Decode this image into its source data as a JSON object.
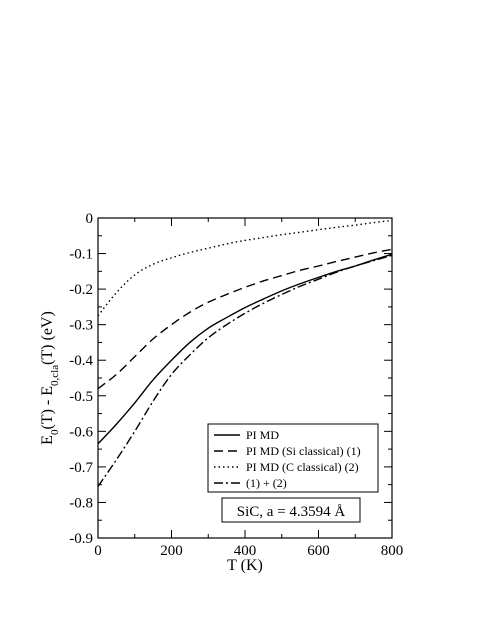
{
  "chart_data": {
    "type": "line",
    "xlabel": "T (K)",
    "ylabel": {
      "parts": [
        {
          "text": "E",
          "sub": false
        },
        {
          "text": "0",
          "sub": true
        },
        {
          "text": "(T) - E",
          "sub": false
        },
        {
          "text": "0,cla",
          "sub": true
        },
        {
          "text": "(T)  (eV)",
          "sub": false
        }
      ]
    },
    "xlim": [
      0,
      800
    ],
    "ylim": [
      -0.9,
      0
    ],
    "xticks": [
      0,
      200,
      400,
      600,
      800
    ],
    "yticks": [
      0,
      -0.1,
      -0.2,
      -0.3,
      -0.4,
      -0.5,
      -0.6,
      -0.7,
      -0.8,
      -0.9
    ],
    "xtick_labels": [
      "0",
      "200",
      "400",
      "600",
      "800"
    ],
    "ytick_labels": [
      "0",
      "-0.1",
      "-0.2",
      "-0.3",
      "-0.4",
      "-0.5",
      "-0.6",
      "-0.7",
      "-0.8",
      "-0.9"
    ],
    "x_minor_step": 100,
    "y_minor_step": 0.05,
    "grid": false,
    "legend_position": "lower-right",
    "annotation": "SiC, a = 4.3594 Å",
    "series": [
      {
        "name": "PI MD",
        "style": "solid",
        "x": [
          0,
          50,
          100,
          150,
          200,
          250,
          300,
          350,
          400,
          450,
          500,
          550,
          600,
          650,
          700,
          750,
          800
        ],
        "y": [
          -0.635,
          -0.58,
          -0.52,
          -0.455,
          -0.4,
          -0.35,
          -0.31,
          -0.28,
          -0.252,
          -0.228,
          -0.205,
          -0.185,
          -0.167,
          -0.15,
          -0.135,
          -0.118,
          -0.102
        ]
      },
      {
        "name": "PI MD (Si classical)  (1)",
        "style": "dashed",
        "x": [
          0,
          50,
          100,
          150,
          200,
          250,
          300,
          350,
          400,
          450,
          500,
          550,
          600,
          650,
          700,
          750,
          800
        ],
        "y": [
          -0.48,
          -0.44,
          -0.39,
          -0.34,
          -0.3,
          -0.265,
          -0.237,
          -0.215,
          -0.195,
          -0.177,
          -0.162,
          -0.147,
          -0.135,
          -0.122,
          -0.11,
          -0.098,
          -0.088
        ]
      },
      {
        "name": "PI MD (C  classical)  (2)",
        "style": "dotted",
        "x": [
          0,
          50,
          100,
          150,
          200,
          250,
          300,
          350,
          400,
          450,
          500,
          550,
          600,
          650,
          700,
          750,
          800
        ],
        "y": [
          -0.275,
          -0.21,
          -0.16,
          -0.13,
          -0.112,
          -0.097,
          -0.085,
          -0.073,
          -0.063,
          -0.055,
          -0.047,
          -0.04,
          -0.033,
          -0.026,
          -0.02,
          -0.013,
          -0.007
        ]
      },
      {
        "name": "(1) + (2)",
        "style": "dashdot",
        "x": [
          0,
          50,
          100,
          150,
          200,
          250,
          300,
          350,
          400,
          450,
          500,
          550,
          600,
          650,
          700,
          750,
          800
        ],
        "y": [
          -0.755,
          -0.68,
          -0.6,
          -0.515,
          -0.44,
          -0.385,
          -0.337,
          -0.3,
          -0.268,
          -0.24,
          -0.215,
          -0.192,
          -0.172,
          -0.152,
          -0.135,
          -0.12,
          -0.105
        ]
      }
    ]
  }
}
